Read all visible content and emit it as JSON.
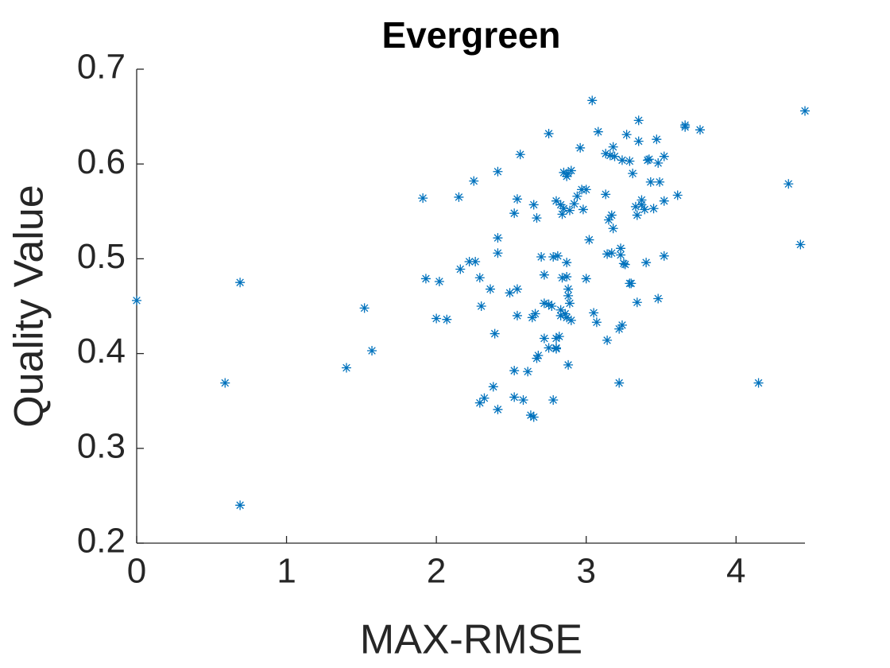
{
  "chart_data": {
    "type": "scatter",
    "title": "Evergreen",
    "x_label": "MAX-RMSE",
    "y_label": "Quality Value",
    "marker": "asterisk",
    "color": "#0072bd",
    "xlim": [
      0,
      4.46
    ],
    "ylim": [
      0.2,
      0.7
    ],
    "xticks": [
      0,
      1,
      2,
      3,
      4
    ],
    "yticks": [
      {
        "value": 0.2,
        "label": "0.2"
      },
      {
        "value": 0.3,
        "label": "0.3"
      },
      {
        "value": 0.4,
        "label": "0.4"
      },
      {
        "value": 0.5,
        "label": "0.5"
      },
      {
        "value": 0.6,
        "label": "0.6"
      },
      {
        "value": 0.7,
        "label": "0.7"
      }
    ],
    "series": [
      {
        "name": "Evergreen",
        "color": "#0072bd",
        "x": [
          0.0,
          0.59,
          0.69,
          0.69,
          1.4,
          1.52,
          1.57,
          1.91,
          1.93,
          2.02,
          2.0,
          2.07,
          2.15,
          2.16,
          2.22,
          2.25,
          2.26,
          2.29,
          2.3,
          2.29,
          2.32,
          2.36,
          2.38,
          2.39,
          2.41,
          2.41,
          2.41,
          2.41,
          2.49,
          2.52,
          2.52,
          2.52,
          2.54,
          2.54,
          2.54,
          2.56,
          2.58,
          2.61,
          2.63,
          2.65,
          2.64,
          2.65,
          2.66,
          2.67,
          2.68,
          2.67,
          2.7,
          2.72,
          2.72,
          2.72,
          2.75,
          2.75,
          2.75,
          2.77,
          2.78,
          2.78,
          2.8,
          2.8,
          2.8,
          2.8,
          2.81,
          2.82,
          2.83,
          2.83,
          2.83,
          2.84,
          2.85,
          2.84,
          2.85,
          2.86,
          2.87,
          2.87,
          2.87,
          2.88,
          2.88,
          2.87,
          2.88,
          2.88,
          2.89,
          2.9,
          2.89,
          2.9,
          2.92,
          2.94,
          2.96,
          2.97,
          2.98,
          3.0,
          3.0,
          3.02,
          3.04,
          3.05,
          3.07,
          3.08,
          3.13,
          3.13,
          3.14,
          3.14,
          3.15,
          3.16,
          3.17,
          3.17,
          3.18,
          3.18,
          3.19,
          3.22,
          3.23,
          3.22,
          3.23,
          3.24,
          3.24,
          3.25,
          3.26,
          3.27,
          3.29,
          3.29,
          3.3,
          3.31,
          3.33,
          3.34,
          3.34,
          3.35,
          3.35,
          3.37,
          3.37,
          3.39,
          3.4,
          3.41,
          3.42,
          3.43,
          3.45,
          3.47,
          3.48,
          3.48,
          3.49,
          3.52,
          3.52,
          3.52,
          3.61,
          3.66,
          3.66,
          3.76,
          4.15,
          4.35,
          4.43,
          4.46
        ],
        "values": [
          0.456,
          0.369,
          0.475,
          0.24,
          0.385,
          0.448,
          0.403,
          0.564,
          0.479,
          0.476,
          0.437,
          0.436,
          0.565,
          0.489,
          0.497,
          0.582,
          0.497,
          0.48,
          0.45,
          0.348,
          0.353,
          0.468,
          0.365,
          0.421,
          0.592,
          0.522,
          0.506,
          0.341,
          0.464,
          0.382,
          0.354,
          0.548,
          0.563,
          0.468,
          0.44,
          0.61,
          0.351,
          0.381,
          0.335,
          0.333,
          0.438,
          0.557,
          0.442,
          0.395,
          0.398,
          0.543,
          0.502,
          0.483,
          0.453,
          0.416,
          0.632,
          0.452,
          0.406,
          0.45,
          0.502,
          0.351,
          0.416,
          0.406,
          0.561,
          0.405,
          0.503,
          0.418,
          0.446,
          0.557,
          0.44,
          0.547,
          0.553,
          0.48,
          0.591,
          0.442,
          0.496,
          0.587,
          0.481,
          0.468,
          0.59,
          0.438,
          0.388,
          0.461,
          0.453,
          0.593,
          0.551,
          0.435,
          0.558,
          0.566,
          0.617,
          0.573,
          0.552,
          0.573,
          0.479,
          0.52,
          0.667,
          0.443,
          0.433,
          0.634,
          0.568,
          0.611,
          0.505,
          0.414,
          0.541,
          0.609,
          0.546,
          0.506,
          0.618,
          0.532,
          0.608,
          0.426,
          0.511,
          0.369,
          0.504,
          0.604,
          0.43,
          0.495,
          0.494,
          0.631,
          0.603,
          0.474,
          0.474,
          0.59,
          0.555,
          0.546,
          0.454,
          0.646,
          0.624,
          0.557,
          0.562,
          0.552,
          0.496,
          0.604,
          0.605,
          0.581,
          0.553,
          0.626,
          0.458,
          0.601,
          0.581,
          0.561,
          0.503,
          0.608,
          0.567,
          0.641,
          0.639,
          0.636,
          0.369,
          0.579,
          0.515,
          0.656
        ]
      }
    ]
  }
}
